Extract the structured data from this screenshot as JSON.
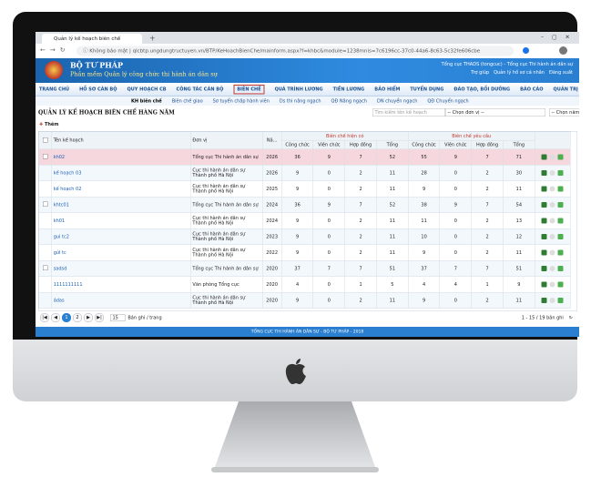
{
  "browser": {
    "tab_title": "Quản lý kế hoạch biên chế",
    "security": "Không bảo mật",
    "url": "qlcbtp.ungdungtructuyen.vn/BTP/KeHoachBienChe/mainform.aspx?f=khbc&module=1238mnis=7c6196cc-37c0-44a6-8c63-5c32fe606cbe"
  },
  "header": {
    "title": "BỘ TƯ PHÁP",
    "subtitle": "Phần mềm Quản lý công chức thi hành án dân sự",
    "user": "Tổng cục THADS (tongcuc) - Tổng cục Thi hành án dân sự",
    "links": [
      "Trợ giúp",
      "Quản lý hồ sơ cá nhân",
      "Đăng xuất"
    ]
  },
  "menu": [
    "TRANG CHỦ",
    "HỒ SƠ CÁN BỘ",
    "QUY HOẠCH CB",
    "CÔNG TÁC CÁN BỘ",
    "BIÊN CHẾ",
    "QUÁ TRÌNH LƯƠNG",
    "TIỀN LƯƠNG",
    "BẢO HIỂM",
    "TUYỂN DỤNG",
    "ĐÀO TẠO, BỒI DƯỠNG",
    "BÁO CÁO",
    "QUẢN TRỊ"
  ],
  "submenu": [
    "KH biên chế",
    "Biên chế giao",
    "Sơ tuyển chấp hành viên",
    "Ds thi nâng ngạch",
    "QĐ Nâng ngạch",
    "DN chuyển ngạch",
    "QĐ Chuyển ngạch"
  ],
  "page": {
    "title": "QUẢN LÝ KẾ HOẠCH BIÊN CHẾ HÀNG NĂM",
    "search_placeholder": "Tìm kiếm tên kế hoạch",
    "unit_select": "-- Chọn đơn vị --",
    "year_select": "-- Chọn năm --",
    "add_button": "Thêm"
  },
  "table": {
    "columns": {
      "name": "Tên kế hoạch",
      "unit": "Đơn vị",
      "year": "Nă...",
      "current": "Biên chế hiện có",
      "requested": "Biên chế yêu cầu",
      "sub": [
        "Công chức",
        "Viên chức",
        "Hợp đồng",
        "Tổng"
      ]
    },
    "rows": [
      [
        "kh02",
        "Tổng cục Thi hành án dân sự",
        2026,
        36,
        9,
        7,
        52,
        55,
        9,
        7,
        71
      ],
      [
        "kế hoạch 03",
        "Cục thi hành án dân sự Thành phố Hà Nội",
        2026,
        9,
        0,
        2,
        11,
        28,
        0,
        2,
        30
      ],
      [
        "kế hoạch 02",
        "Cục thi hành án dân sự Thành phố Hà Nội",
        2025,
        9,
        0,
        2,
        11,
        9,
        0,
        2,
        11
      ],
      [
        "khtc01",
        "Tổng cục Thi hành án dân sự",
        2024,
        36,
        9,
        7,
        52,
        38,
        9,
        7,
        54
      ],
      [
        "kh01",
        "Cục thi hành án dân sự Thành phố Hà Nội",
        2024,
        9,
        0,
        2,
        11,
        11,
        0,
        2,
        13
      ],
      [
        "gui tc2",
        "Cục thi hành án dân sự Thành phố Hà Nội",
        2023,
        9,
        0,
        2,
        11,
        10,
        0,
        2,
        12
      ],
      [
        "gửi tc",
        "Cục thi hành án dân sự Thành phố Hà Nội",
        2022,
        9,
        0,
        2,
        11,
        9,
        0,
        2,
        11
      ],
      [
        "sadsd",
        "Tổng cục Thi hành án dân sự",
        2020,
        37,
        7,
        7,
        51,
        37,
        7,
        7,
        51
      ],
      [
        "1111111111",
        "Văn phòng Tổng cục",
        2020,
        4,
        0,
        1,
        5,
        4,
        4,
        1,
        9
      ],
      [
        "ádas",
        "Cục thi hành án dân sự Thành phố Hà Nội",
        2020,
        9,
        0,
        2,
        11,
        9,
        0,
        2,
        11
      ]
    ]
  },
  "pager": {
    "pages": [
      "1",
      "2"
    ],
    "page_size": "15",
    "page_size_label": "Bản ghi / trang",
    "summary": "1 - 15 / 19 bản ghi"
  },
  "footer": "TỔNG CỤC THI HÀNH ÁN DÂN SỰ - BỘ TƯ PHÁP - 2018"
}
